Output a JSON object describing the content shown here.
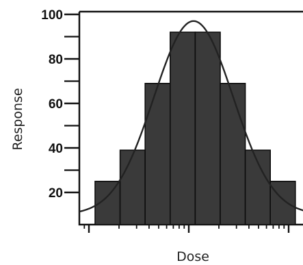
{
  "chart_data": {
    "type": "bar",
    "title": "",
    "xlabel": "Dose",
    "ylabel": "Response",
    "ylim": [
      10,
      100
    ],
    "y_ticks": [
      20,
      40,
      60,
      80,
      100
    ],
    "y_minor_ticks": [
      30,
      50,
      70,
      90
    ],
    "x_scale": "log",
    "x_tick_labels": false,
    "grid": false,
    "legend": "none",
    "bar_color": "#3a3a3a",
    "curve_color": "#222222",
    "values": [
      25,
      39,
      69,
      92,
      92,
      69,
      39,
      25
    ],
    "fitted_curve": {
      "shape": "gaussian",
      "peak": 97,
      "peak_position": "center"
    }
  }
}
